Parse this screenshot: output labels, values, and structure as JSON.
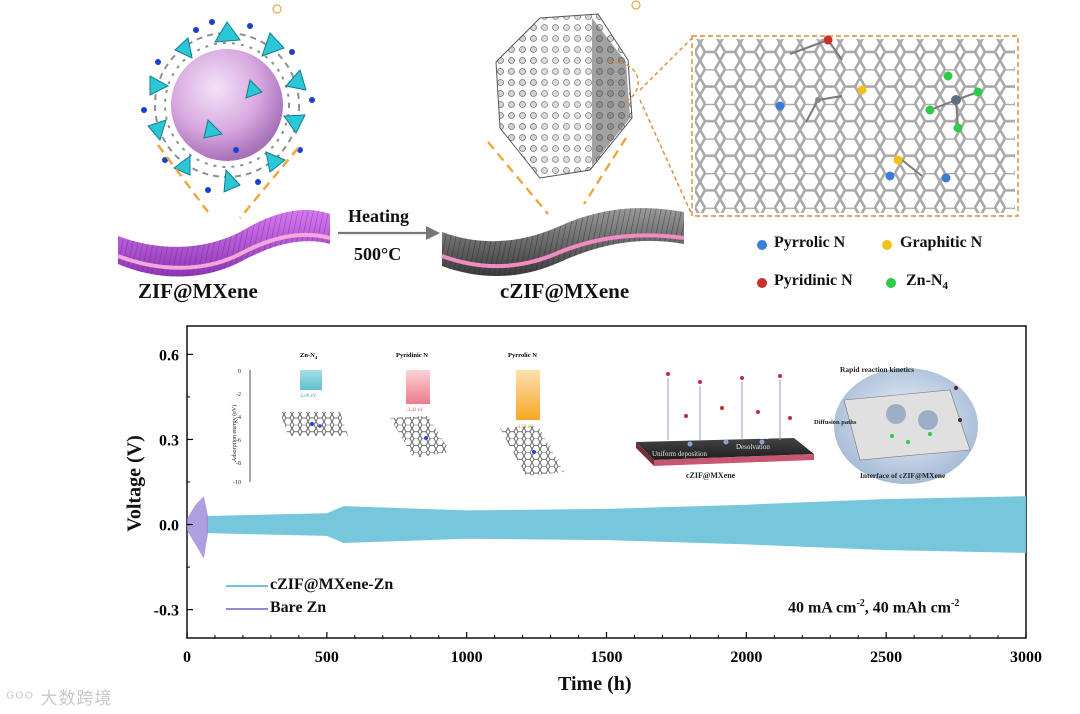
{
  "top": {
    "label_left": "ZIF@MXene",
    "label_right": "cZIF@MXene",
    "arrow_top": "Heating",
    "arrow_bottom": "500°C",
    "legend": [
      {
        "label": "Pyrrolic N",
        "color": "#3a7fd5",
        "icon": "blue-dot-icon"
      },
      {
        "label": "Graphitic N",
        "color": "#f2c21b",
        "icon": "yellow-dot-icon"
      },
      {
        "label": "Pyridinic N",
        "color": "#c8302c",
        "icon": "red-dot-icon"
      },
      {
        "label": "Zn-N",
        "sub": "4",
        "color": "#2ec94d",
        "icon": "green-dot-icon"
      }
    ]
  },
  "inset_bar": {
    "ylabel": "Adsorption energy (eV)",
    "yticks": [
      "0",
      "-2",
      "-4",
      "-6",
      "-8",
      "-10"
    ],
    "cols": [
      {
        "name": "Zn-N",
        "sub": "4",
        "value": "-2.00 eV",
        "color": "#5fc0cf"
      },
      {
        "name": "Pyridinic N",
        "sub": "",
        "value": "-3.42 eV",
        "color": "#ee7b8a"
      },
      {
        "name": "Pyrrolic N",
        "sub": "",
        "value": "-4.50 eV",
        "color": "#f6a626"
      }
    ]
  },
  "inset_scheme": {
    "title_right": "Rapid reaction kinetics",
    "diffusion": "Diffusion paths",
    "interface": "Interface of cZIF@MXene",
    "uniform": "Uniform deposition",
    "desolvation": "Desolvation",
    "zn_ion": "Zn",
    "zn_sup": "2+",
    "slab": "cZIF@MXene"
  },
  "chart_data": {
    "type": "line",
    "xlabel": "Time (h)",
    "ylabel": "Voltage (V)",
    "xlim": [
      0,
      3000
    ],
    "ylim": [
      -0.4,
      0.7
    ],
    "xticks": [
      "0",
      "500",
      "1000",
      "1500",
      "2000",
      "2500",
      "3000"
    ],
    "yticks": [
      "0.6",
      "0.3",
      "0.0",
      "-0.3"
    ],
    "annotation": "40 mA cm",
    "annotation_sup": "-2",
    "annotation2": ",  40 mAh cm",
    "annotation2_sup": "-2",
    "series": [
      {
        "name": "cZIF@MXene-Zn",
        "color": "#6fc4da",
        "envelope": [
          {
            "x": 70,
            "upper": 0.03,
            "lower": -0.03
          },
          {
            "x": 500,
            "upper": 0.04,
            "lower": -0.04
          },
          {
            "x": 560,
            "upper": 0.065,
            "lower": -0.065
          },
          {
            "x": 1000,
            "upper": 0.05,
            "lower": -0.05
          },
          {
            "x": 1500,
            "upper": 0.055,
            "lower": -0.055
          },
          {
            "x": 2000,
            "upper": 0.07,
            "lower": -0.07
          },
          {
            "x": 2500,
            "upper": 0.09,
            "lower": -0.09
          },
          {
            "x": 3000,
            "upper": 0.1,
            "lower": -0.1
          }
        ]
      },
      {
        "name": "Bare Zn",
        "color": "#9b86d8",
        "envelope": [
          {
            "x": 0,
            "upper": 0.02,
            "lower": -0.02
          },
          {
            "x": 30,
            "upper": 0.07,
            "lower": -0.07
          },
          {
            "x": 60,
            "upper": 0.1,
            "lower": -0.12
          },
          {
            "x": 75,
            "upper": 0.03,
            "lower": -0.03
          }
        ]
      }
    ]
  }
}
